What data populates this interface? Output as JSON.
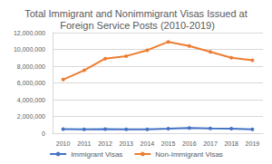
{
  "chart_data": {
    "type": "line",
    "title": "Total Immigrant and Nonimmigrant Visas Issued at Foreign Service Posts (2010-2019)",
    "categories": [
      "2010",
      "2011",
      "2012",
      "2013",
      "2014",
      "2015",
      "2016",
      "2017",
      "2018",
      "2019"
    ],
    "series": [
      {
        "name": "Immigrant Visas",
        "color": "#4472c4",
        "marker": "circle",
        "values": [
          480000,
          470000,
          480000,
          470000,
          470000,
          530000,
          620000,
          560000,
          530000,
          460000
        ]
      },
      {
        "name": "Non-Immigrant Visas",
        "color": "#ed7d31",
        "marker": "circle",
        "values": [
          6400000,
          7500000,
          8900000,
          9200000,
          9900000,
          10900000,
          10400000,
          9700000,
          9000000,
          8700000
        ]
      }
    ],
    "ylim": [
      0,
      12000000
    ],
    "yticks": [
      0,
      {
        "value": 2000000,
        "label": "2,000,000"
      },
      {
        "value": 4000000,
        "label": "4,000,000"
      },
      {
        "value": 6000000,
        "label": "6,000,000"
      },
      {
        "value": 8000000,
        "label": "8,000,000"
      },
      {
        "value": 10000000,
        "label": "10,000,000"
      },
      {
        "value": 12000000,
        "label": "12,000,000"
      }
    ],
    "grid": true,
    "legend": "bottom"
  }
}
